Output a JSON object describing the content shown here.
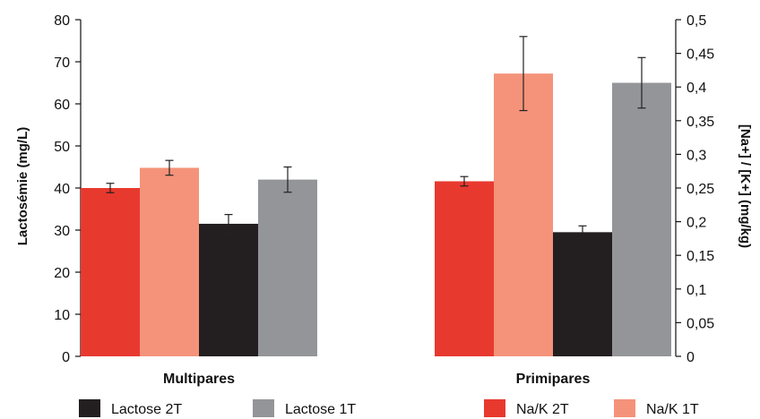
{
  "chart_data": {
    "type": "bar",
    "categories": [
      "Multipares",
      "Primipares"
    ],
    "xlabel": "",
    "ylabel": "Lactosémie (mg/L)",
    "y2label": "[Na+] / [K+] (mg/kg)",
    "ylim": [
      0,
      80
    ],
    "y2lim": [
      0,
      0.5
    ],
    "yticks": [
      "0",
      "10",
      "20",
      "30",
      "40",
      "50",
      "60",
      "70",
      "80"
    ],
    "y2ticks": [
      "0",
      "0,05",
      "0,1",
      "0,15",
      "0,2",
      "0,25",
      "0,3",
      "0,35",
      "0,4",
      "0,45",
      "0,5"
    ],
    "grid": false,
    "legend_position": "bottom",
    "series": [
      {
        "name": "Na/K 2T",
        "axis": "right",
        "color": "#e8392f",
        "values": [
          0.25,
          0.26
        ],
        "errors": [
          0.007,
          0.007
        ]
      },
      {
        "name": "Na/K 1T",
        "axis": "right",
        "color": "#f4937a",
        "values": [
          0.28,
          0.42
        ],
        "errors": [
          0.011,
          0.055
        ]
      },
      {
        "name": "Lactose 2T",
        "axis": "left",
        "color": "#231f20",
        "values": [
          31.5,
          29.5
        ],
        "errors": [
          2.2,
          1.5
        ]
      },
      {
        "name": "Lactose 1T",
        "axis": "left",
        "color": "#939598",
        "values": [
          42,
          65
        ],
        "errors": [
          3,
          6
        ]
      }
    ],
    "legend_order": [
      "Lactose 2T",
      "Lactose 1T",
      "Na/K 2T",
      "Na/K 1T"
    ]
  }
}
